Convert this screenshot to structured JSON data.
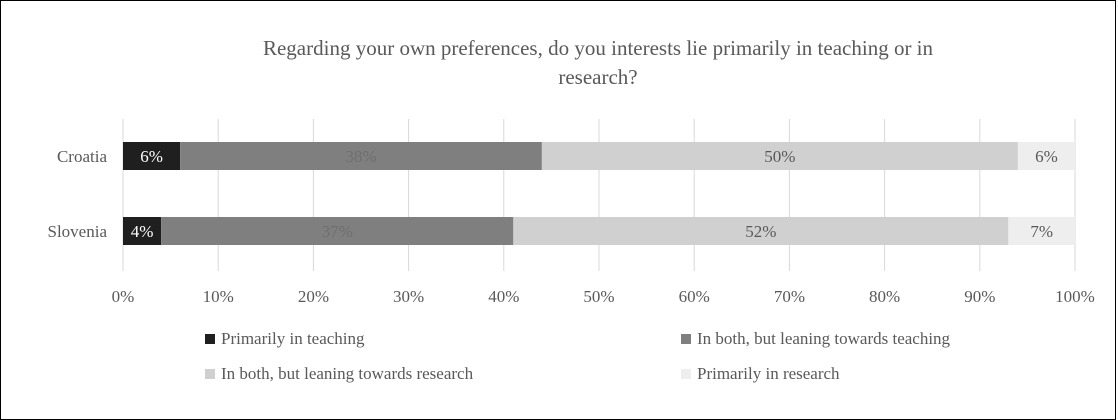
{
  "chart_data": {
    "type": "bar",
    "orientation": "horizontal",
    "stacked": true,
    "title": "Regarding your own preferences, do you interests lie primarily in teaching or in research?",
    "title_lines": [
      "Regarding your own preferences, do you interests lie primarily in teaching or in",
      "research?"
    ],
    "categories": [
      "Croatia",
      "Slovenia"
    ],
    "series": [
      {
        "name": "Primarily in teaching",
        "color": "#1f1f1f",
        "label_color": "#ffffff",
        "values": [
          6,
          4
        ],
        "labels": [
          "6%",
          "4%"
        ]
      },
      {
        "name": "In both, but leaning towards teaching",
        "color": "#7f7f7f",
        "label_color": "#6f6f6f",
        "values": [
          38,
          37
        ],
        "labels": [
          "38%",
          "37%"
        ]
      },
      {
        "name": "In both, but leaning towards research",
        "color": "#d0d0d0",
        "label_color": "#595959",
        "values": [
          50,
          52
        ],
        "labels": [
          "50%",
          "52%"
        ]
      },
      {
        "name": "Primarily in research",
        "color": "#eeeeee",
        "label_color": "#595959",
        "values": [
          6,
          7
        ],
        "labels": [
          "6%",
          "7%"
        ]
      }
    ],
    "xlim": [
      0,
      100
    ],
    "x_ticks": [
      "0%",
      "10%",
      "20%",
      "30%",
      "40%",
      "50%",
      "60%",
      "70%",
      "80%",
      "90%",
      "100%"
    ],
    "xlabel": "",
    "ylabel": "",
    "grid": "vertical",
    "legend_position": "bottom"
  }
}
